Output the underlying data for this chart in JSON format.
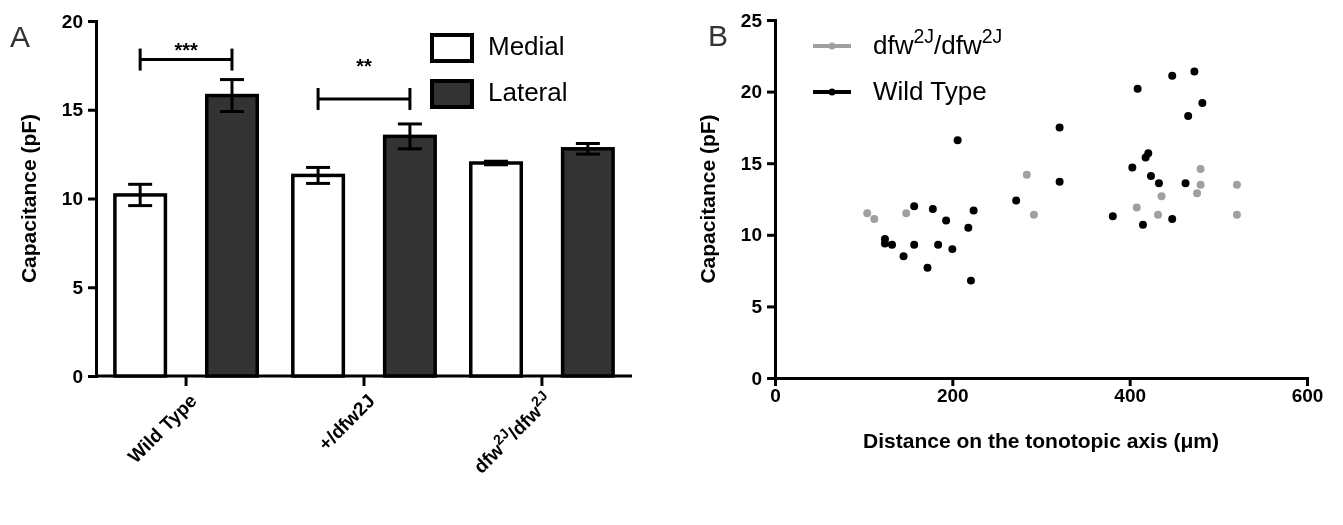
{
  "chart_data": [
    {
      "type": "bar",
      "title": "A",
      "ylabel": "Capacitance (pF)",
      "categories": [
        "Wild Type",
        "+/dfw2J",
        "dfw$^{2J}$/dfw$^{2J}$"
      ],
      "series": [
        {
          "name": "Medial",
          "color": "#ffffff",
          "values": [
            10.2,
            11.3,
            12.0
          ],
          "errors": [
            0.6,
            0.45,
            0.1
          ]
        },
        {
          "name": "Lateral",
          "color": "#333333",
          "values": [
            15.8,
            13.5,
            12.8
          ],
          "errors": [
            0.9,
            0.7,
            0.3
          ]
        }
      ],
      "ylim": [
        0,
        20
      ],
      "yticks": [
        0,
        5,
        10,
        15,
        20
      ],
      "legend": "top right",
      "annotations": [
        "***",
        "**"
      ]
    },
    {
      "type": "scatter",
      "title": "B",
      "xlabel": "Distance on the tonotopic axis (μm)",
      "ylabel": "Capacitance (pF)",
      "series": [
        {
          "name": "dfw$^{2J}$/dfw$^{2J}$",
          "color": "#a0a0a0",
          "x": [
            104,
            112,
            148,
            284,
            292,
            408,
            432,
            436,
            476,
            480,
            480,
            521,
            521
          ],
          "values": [
            11.5,
            11.1,
            11.5,
            14.2,
            11.4,
            11.9,
            11.4,
            12.7,
            12.9,
            14.6,
            13.5,
            13.5,
            11.4
          ]
        },
        {
          "name": "Wild Type",
          "color": "#000000",
          "x": [
            124,
            124,
            132,
            145,
            157,
            157,
            172,
            178,
            184,
            193,
            200,
            206,
            218,
            221,
            224,
            272,
            321,
            321,
            381,
            403,
            409,
            415,
            418,
            421,
            424,
            433,
            448,
            448,
            463,
            466,
            473,
            482
          ],
          "values": [
            9.7,
            9.4,
            9.3,
            8.5,
            12.0,
            9.3,
            7.7,
            11.8,
            9.3,
            11.0,
            9.0,
            16.6,
            10.5,
            6.8,
            11.7,
            12.4,
            17.5,
            13.7,
            11.3,
            14.7,
            20.2,
            10.7,
            15.4,
            15.7,
            14.1,
            13.6,
            21.1,
            11.1,
            13.6,
            18.3,
            21.4,
            19.2
          ]
        }
      ],
      "xlim": [
        0,
        600
      ],
      "xticks": [
        0,
        200,
        400,
        600
      ],
      "ylim": [
        0,
        25
      ],
      "yticks": [
        0,
        5,
        10,
        15,
        20,
        25
      ],
      "legend": "top left",
      "marker": "circle"
    }
  ]
}
